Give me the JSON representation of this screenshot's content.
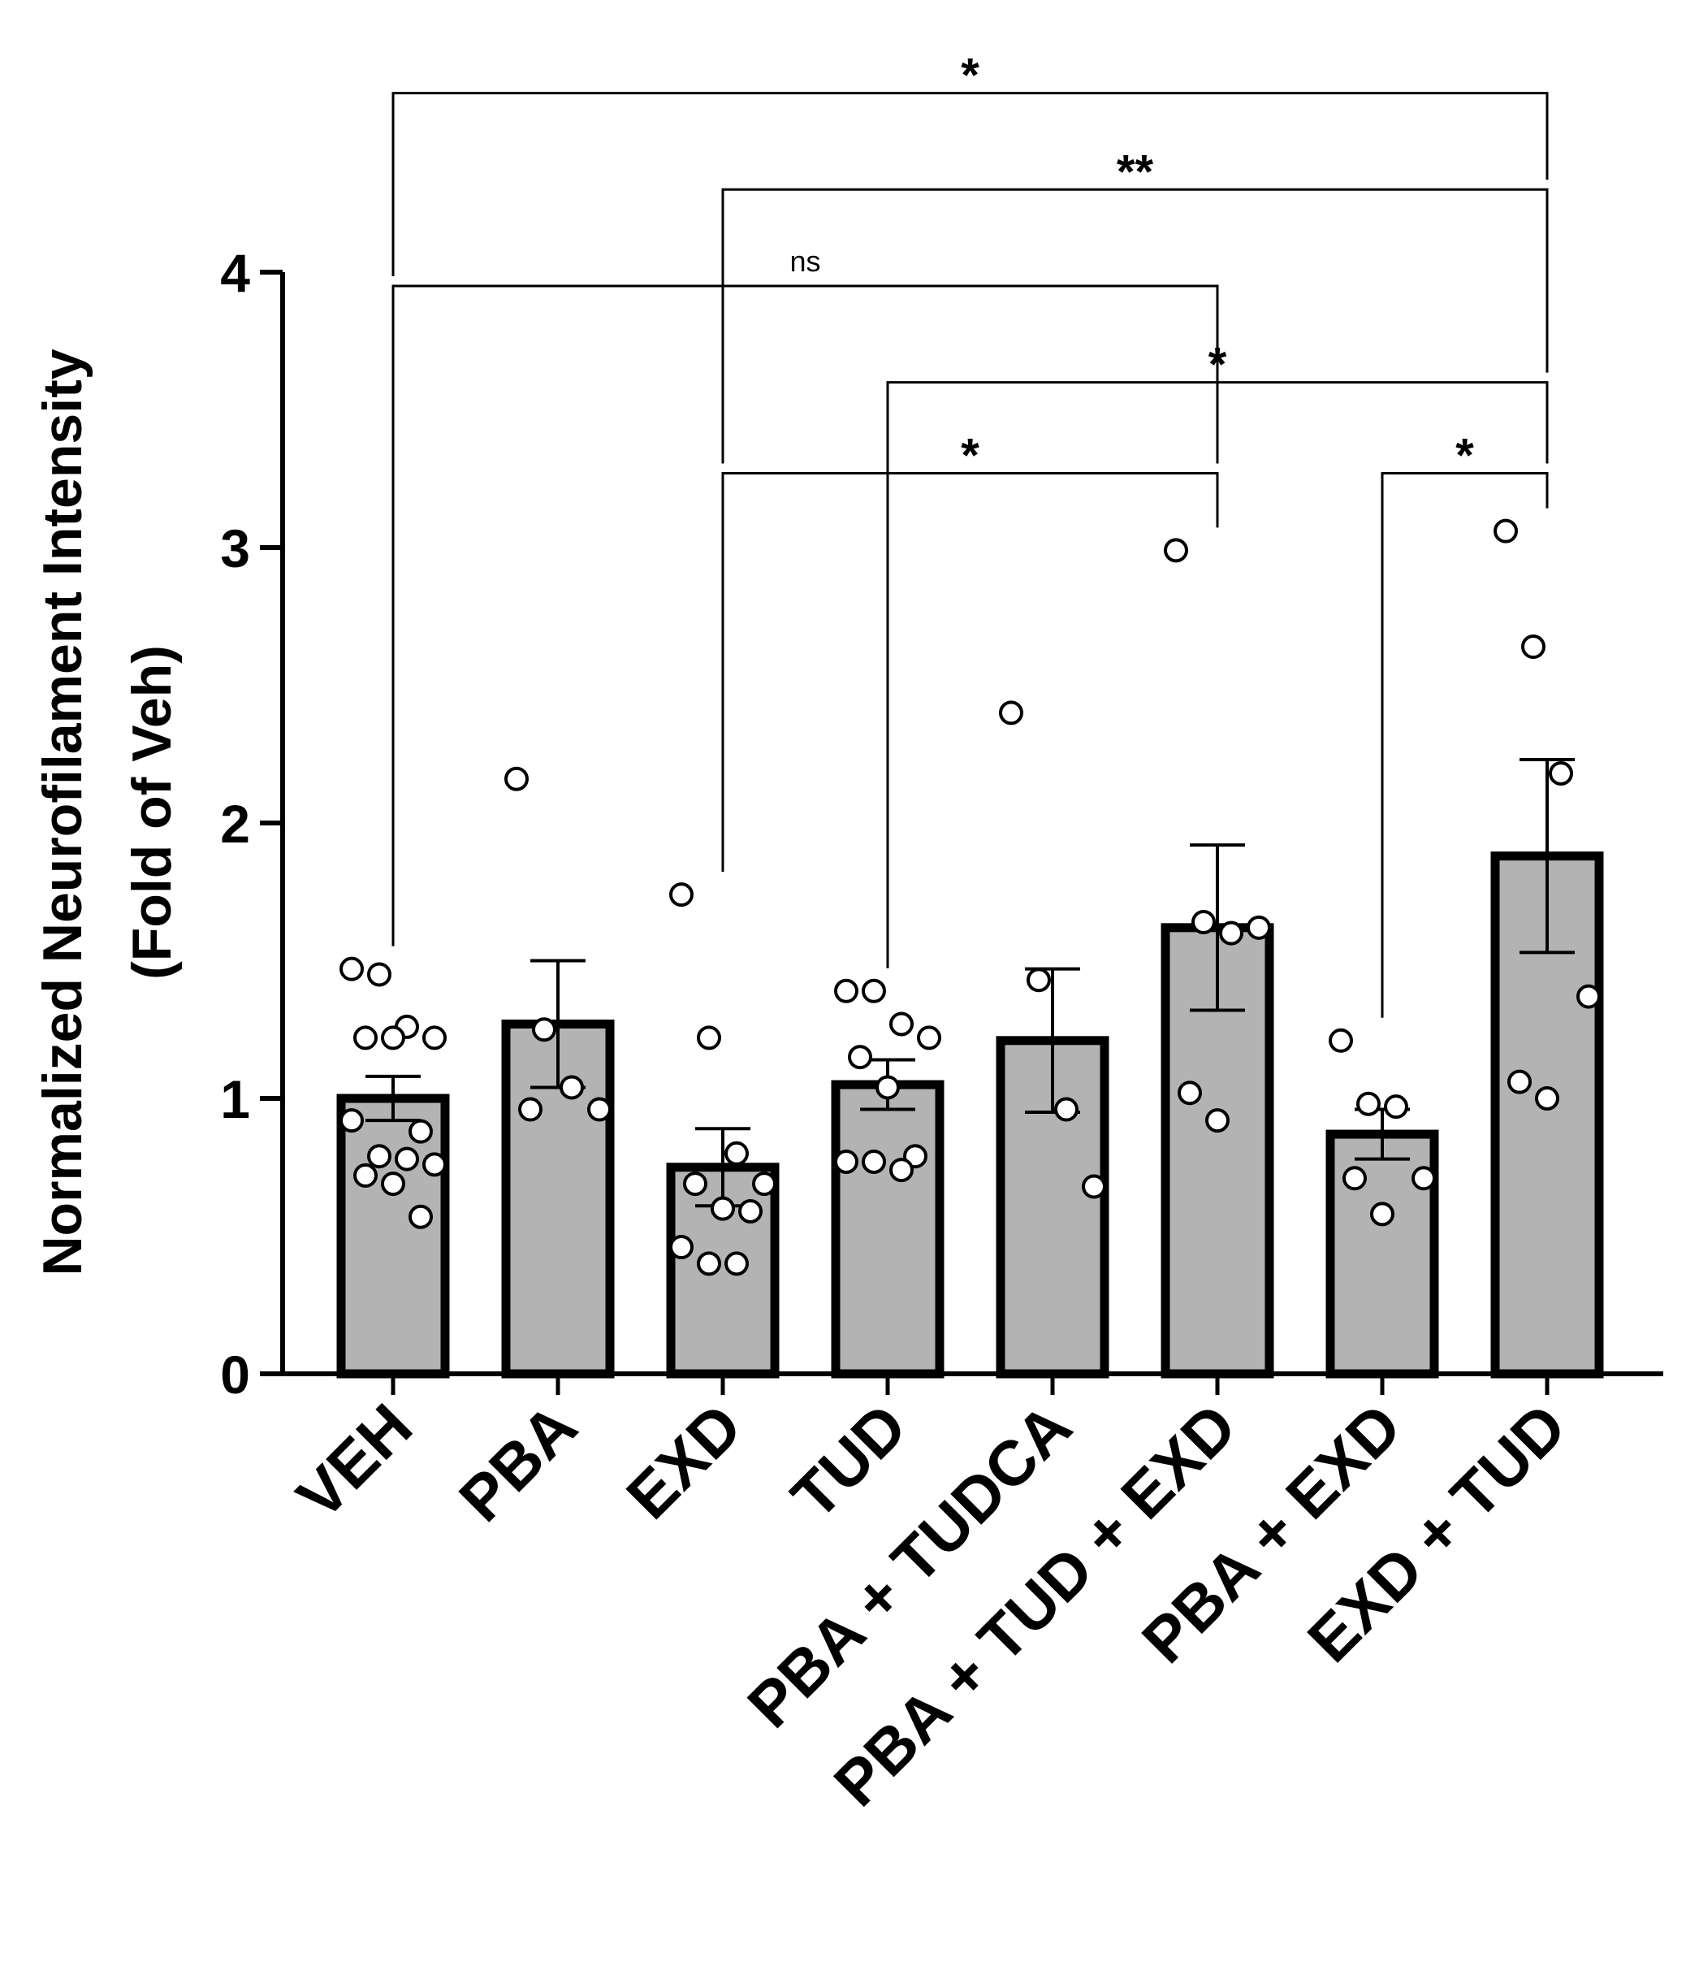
{
  "chart_data": {
    "type": "bar",
    "ylabel_line1": "Normalized Neurofilament Intensity",
    "ylabel_line2": "(Fold of Veh)",
    "ylim": [
      0,
      4
    ],
    "yticks": [
      0,
      1,
      2,
      3,
      4
    ],
    "categories": [
      "VEH",
      "PBA",
      "EXD",
      "TUD",
      "PBA + TUDCA",
      "PBA + TUD + EXD",
      "PBA + EXD",
      "EXD + TUD"
    ],
    "means": [
      1.0,
      1.27,
      0.75,
      1.05,
      1.21,
      1.62,
      0.87,
      1.88
    ],
    "sem": [
      0.08,
      0.23,
      0.14,
      0.09,
      0.26,
      0.3,
      0.09,
      0.35
    ],
    "points": [
      [
        1.47,
        1.45,
        1.26,
        1.22,
        1.22,
        1.22,
        0.88,
        0.92,
        0.79,
        0.78,
        0.76,
        0.72,
        0.69,
        0.57
      ],
      [
        2.16,
        1.25,
        1.04,
        0.96,
        0.96
      ],
      [
        1.74,
        1.22,
        0.8,
        0.69,
        0.69,
        0.6,
        0.59,
        0.46,
        0.4,
        0.4
      ],
      [
        1.39,
        1.39,
        1.27,
        1.22,
        1.15,
        1.04,
        0.79,
        0.77,
        0.77,
        0.74
      ],
      [
        2.4,
        1.43,
        0.96,
        0.68
      ],
      [
        2.99,
        1.64,
        1.6,
        1.62,
        1.02,
        0.92
      ],
      [
        1.21,
        0.98,
        0.97,
        0.71,
        0.71,
        0.58
      ],
      [
        3.06,
        2.64,
        2.18,
        1.37,
        1.06,
        1.0
      ]
    ],
    "comparisons": [
      {
        "from": 0,
        "to": 7,
        "label": "*",
        "y": 4.65
      },
      {
        "from": 2,
        "to": 7,
        "label": "**",
        "y": 4.3
      },
      {
        "from": 0,
        "to": 5,
        "label": "ns",
        "y": 3.95
      },
      {
        "from": 3,
        "to": 7,
        "label": "*",
        "y": 3.6
      },
      {
        "from": 2,
        "to": 5,
        "label": "*",
        "y": 3.27
      },
      {
        "from": 6,
        "to": 7,
        "label": "*",
        "y": 3.27
      }
    ],
    "bar_color": "#b3b3b3",
    "edge_color": "#000000"
  }
}
